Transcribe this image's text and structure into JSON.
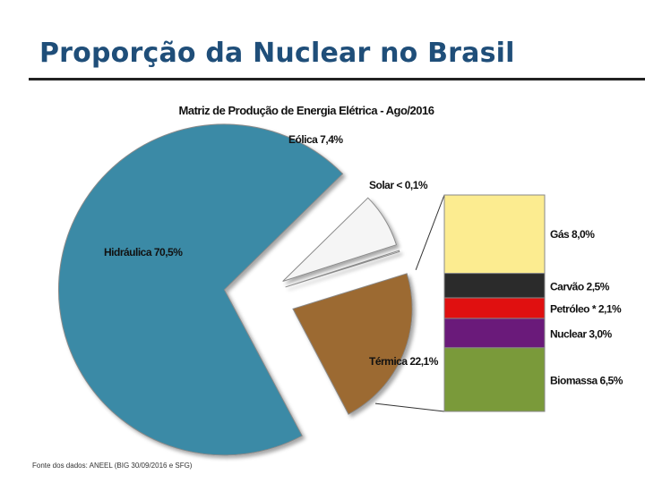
{
  "slide": {
    "title": "Proporção da Nuclear no Brasil",
    "source": "Fonte dos dados: ANEEL (BIG 30/09/2016 e SFG)"
  },
  "chart_data": {
    "type": "pie",
    "title": "Matriz de Produção de Energia Elétrica - Ago/2016",
    "slices": [
      {
        "name": "Hidráulica",
        "value": 70.5,
        "label": "Hidráulica  70,5%",
        "color": "#3A8AA6"
      },
      {
        "name": "Eólica",
        "value": 7.4,
        "label": "Eólica 7,4%",
        "color": "#F5F5F5"
      },
      {
        "name": "Solar",
        "value": 0.1,
        "label": "Solar < 0,1%",
        "color": "#FFFFFF"
      },
      {
        "name": "Térmica",
        "value": 22.1,
        "label": "Térmica 22,1%",
        "color": "#9C6A33"
      }
    ],
    "breakdown": {
      "of": "Térmica",
      "items": [
        {
          "name": "Gás",
          "value": 8.0,
          "label": "Gás 8,0%",
          "color": "#FCEC90"
        },
        {
          "name": "Carvão",
          "value": 2.5,
          "label": "Carvão 2,5%",
          "color": "#2B2B2B"
        },
        {
          "name": "Petróleo",
          "value": 2.1,
          "label": "Petróleo * 2,1%",
          "color": "#E01010"
        },
        {
          "name": "Nuclear",
          "value": 3.0,
          "label": "Nuclear  3,0%",
          "color": "#6A1A7A"
        },
        {
          "name": "Biomassa",
          "value": 6.5,
          "label": "Biomassa 6,5%",
          "color": "#7A9A3A"
        }
      ]
    }
  }
}
